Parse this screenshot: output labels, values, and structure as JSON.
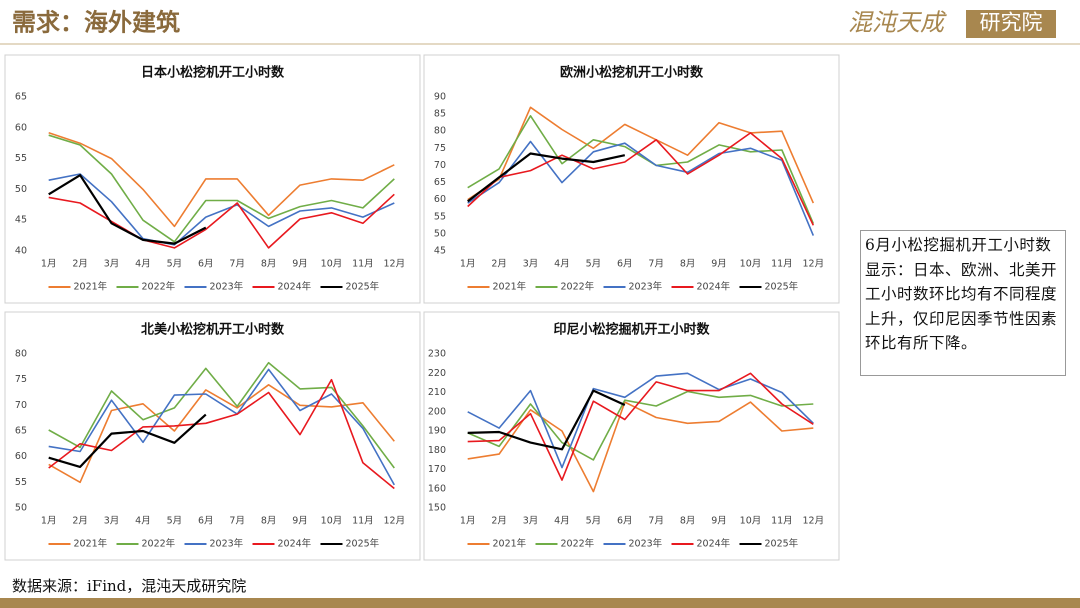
{
  "header": {
    "title": "需求：海外建筑",
    "logo": [
      "混沌天成",
      "研究院"
    ]
  },
  "note": "6月小松挖掘机开工小时数显示：日本、欧洲、北美开工小时数环比均有不同程度上升，仅印尼因季节性因素环比有所下降。",
  "source": "数据来源：iFind，混沌天成研究院",
  "chart_data": [
    {
      "type": "line",
      "title": "日本小松挖机开工小时数",
      "categories": [
        "1月",
        "2月",
        "3月",
        "4月",
        "5月",
        "6月",
        "7月",
        "8月",
        "9月",
        "10月",
        "11月",
        "12月"
      ],
      "ylim": [
        40,
        65
      ],
      "yticks": [
        40,
        45,
        50,
        55,
        60,
        65
      ],
      "grid": false,
      "legend": "bottom",
      "series": [
        {
          "name": "2021年",
          "color": "#ed7d31",
          "values": [
            59.2,
            57.5,
            55,
            50,
            44,
            51.7,
            51.7,
            45.8,
            50.7,
            51.7,
            51.5,
            54
          ]
        },
        {
          "name": "2022年",
          "color": "#70ad47",
          "values": [
            58.8,
            57.2,
            52.5,
            45,
            41.5,
            48.2,
            48.2,
            45.3,
            47.2,
            48.2,
            47,
            51.7
          ]
        },
        {
          "name": "2023年",
          "color": "#4472c4",
          "values": [
            51.5,
            52.5,
            48,
            42,
            41,
            45.5,
            47.5,
            44,
            46.5,
            47,
            45.5,
            47.8
          ]
        },
        {
          "name": "2024年",
          "color": "#e8191f",
          "values": [
            48.7,
            47.8,
            44.8,
            41.8,
            40.5,
            43.5,
            47.8,
            40.5,
            45.2,
            46.2,
            44.5,
            49.2
          ]
        },
        {
          "name": "2025年",
          "color": "#000000",
          "values": [
            49.2,
            52.3,
            44.5,
            41.8,
            41.2,
            43.8,
            null,
            null,
            null,
            null,
            null,
            null
          ]
        }
      ]
    },
    {
      "type": "line",
      "title": "欧洲小松挖机开工小时数",
      "categories": [
        "1月",
        "2月",
        "3月",
        "4月",
        "5月",
        "6月",
        "7月",
        "8月",
        "9月",
        "10月",
        "11月",
        "12月"
      ],
      "ylim": [
        45,
        90
      ],
      "yticks": [
        45,
        50,
        55,
        60,
        65,
        70,
        75,
        80,
        85,
        90
      ],
      "grid": false,
      "legend": "bottom",
      "series": [
        {
          "name": "2021年",
          "color": "#ed7d31",
          "values": [
            60,
            66,
            87,
            80.5,
            75,
            82,
            77.5,
            73,
            82.5,
            79.5,
            80,
            59
          ]
        },
        {
          "name": "2022年",
          "color": "#70ad47",
          "values": [
            63.5,
            69,
            84.5,
            70.5,
            77.5,
            75.5,
            70,
            71,
            76,
            74,
            74.5,
            53
          ]
        },
        {
          "name": "2023年",
          "color": "#4472c4",
          "values": [
            59,
            65,
            77,
            65,
            74,
            76.5,
            70,
            68,
            73.5,
            75,
            71.5,
            49.5
          ]
        },
        {
          "name": "2024年",
          "color": "#e8191f",
          "values": [
            58,
            66.5,
            68.5,
            73,
            69,
            71,
            77.5,
            67.5,
            73,
            79.5,
            72,
            52.5
          ]
        },
        {
          "name": "2025年",
          "color": "#000000",
          "values": [
            59.5,
            66.5,
            73.5,
            72,
            71,
            73,
            null,
            null,
            null,
            null,
            null,
            null
          ]
        }
      ]
    },
    {
      "type": "line",
      "title": "北美小松挖机开工小时数",
      "categories": [
        "1月",
        "2月",
        "3月",
        "4月",
        "5月",
        "6月",
        "7月",
        "8月",
        "9月",
        "10月",
        "11月",
        "12月"
      ],
      "ylim": [
        50,
        80
      ],
      "yticks": [
        50,
        55,
        60,
        65,
        70,
        75,
        80
      ],
      "grid": false,
      "legend": "bottom",
      "series": [
        {
          "name": "2021年",
          "color": "#ed7d31",
          "values": [
            58.5,
            55,
            69,
            70.3,
            65,
            73,
            69.5,
            74,
            70,
            69.7,
            70.5,
            63
          ]
        },
        {
          "name": "2022年",
          "color": "#70ad47",
          "values": [
            65.2,
            61.8,
            72.8,
            67.2,
            69.5,
            77.2,
            69.8,
            78.3,
            73.2,
            73.5,
            66,
            57.8
          ]
        },
        {
          "name": "2023年",
          "color": "#4472c4",
          "values": [
            62,
            61,
            71,
            62.8,
            72,
            72.2,
            68.3,
            77,
            69,
            72.2,
            65.5,
            54.5
          ]
        },
        {
          "name": "2024年",
          "color": "#e8191f",
          "values": [
            57.8,
            62.5,
            61.2,
            65.8,
            66,
            66.5,
            68.3,
            72.5,
            64.3,
            75,
            58.8,
            53.8
          ]
        },
        {
          "name": "2025年",
          "color": "#000000",
          "values": [
            59.8,
            58,
            64.5,
            65,
            62.7,
            68.2,
            null,
            null,
            null,
            null,
            null,
            null
          ]
        }
      ]
    },
    {
      "type": "line",
      "title": "印尼小松挖掘机开工小时数",
      "categories": [
        "1月",
        "2月",
        "3月",
        "4月",
        "5月",
        "6月",
        "7月",
        "8月",
        "9月",
        "10月",
        "11月",
        "12月"
      ],
      "ylim": [
        150,
        230
      ],
      "yticks": [
        150,
        160,
        170,
        180,
        190,
        200,
        210,
        220,
        230
      ],
      "grid": false,
      "legend": "bottom",
      "series": [
        {
          "name": "2021年",
          "color": "#ed7d31",
          "values": [
            175.5,
            178,
            201,
            190,
            158.5,
            205,
            197,
            194,
            195,
            205,
            190,
            191.5
          ]
        },
        {
          "name": "2022年",
          "color": "#70ad47",
          "values": [
            189,
            182,
            204,
            184,
            175,
            206,
            203,
            210.5,
            207.5,
            208.5,
            203,
            204
          ]
        },
        {
          "name": "2023年",
          "color": "#4472c4",
          "values": [
            200,
            191.5,
            211,
            171,
            212,
            207.5,
            218.5,
            220,
            211.5,
            217,
            210,
            194
          ]
        },
        {
          "name": "2024年",
          "color": "#e8191f",
          "values": [
            184.5,
            185,
            199,
            164.5,
            205.5,
            196,
            215.5,
            211,
            211,
            220,
            204,
            193.5
          ]
        },
        {
          "name": "2025年",
          "color": "#000000",
          "values": [
            189,
            189.5,
            184,
            180.5,
            211,
            203.5,
            null,
            null,
            null,
            null,
            null,
            null
          ]
        }
      ]
    }
  ]
}
